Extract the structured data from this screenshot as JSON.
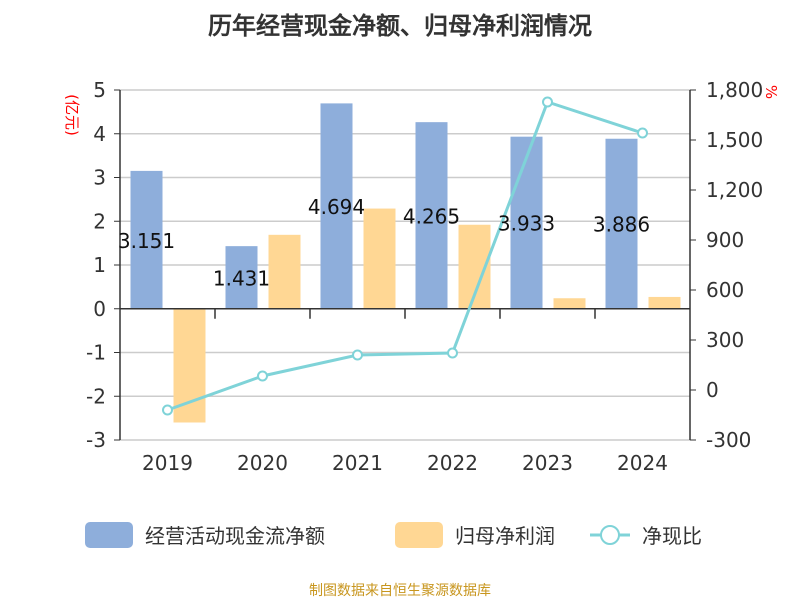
{
  "chart_data": {
    "type": "bar",
    "title": "历年经营现金净额、归母净利润情况",
    "categories": [
      "2019",
      "2020",
      "2021",
      "2022",
      "2023",
      "2024"
    ],
    "left_axis": {
      "label": "(亿元)",
      "ylim": [
        -3,
        5
      ],
      "ticks": [
        "-3",
        "-2",
        "-1",
        "0",
        "1",
        "2",
        "3",
        "4",
        "5"
      ],
      "label_color": "#ff0000"
    },
    "right_axis": {
      "label": "%",
      "ylim": [
        -300,
        1800
      ],
      "ticks": [
        "-300",
        "0",
        "300",
        "600",
        "900",
        "1,200",
        "1,500",
        "1,800"
      ],
      "label_color": "#ff0000"
    },
    "series": [
      {
        "name": "经营活动现金流净额",
        "type": "bar",
        "axis": "left",
        "color": "#8eaedb",
        "values": [
          3.151,
          1.431,
          4.694,
          4.265,
          3.933,
          3.886
        ],
        "data_labels": [
          "3.151",
          "1.431",
          "4.694",
          "4.265",
          "3.933",
          "3.886"
        ]
      },
      {
        "name": "归母净利润",
        "type": "bar",
        "axis": "left",
        "color": "#ffd794",
        "values": [
          -2.6,
          1.69,
          2.29,
          1.92,
          0.24,
          0.27
        ]
      },
      {
        "name": "净现比",
        "type": "line",
        "axis": "right",
        "color": "#7fd3d8",
        "values": [
          -120,
          84,
          210,
          222,
          1728,
          1542
        ]
      }
    ],
    "grid": true,
    "legend_position": "bottom"
  },
  "source": "制图数据来自恒生聚源数据库"
}
